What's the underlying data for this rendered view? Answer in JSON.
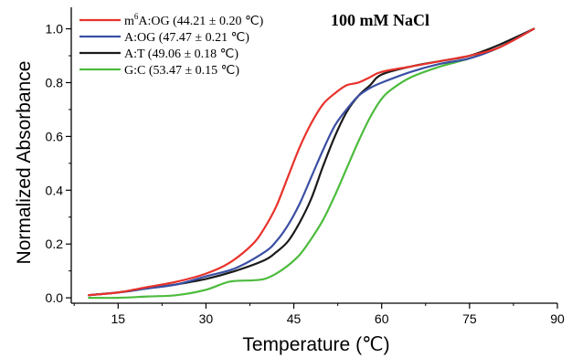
{
  "chart_data": {
    "type": "line",
    "xlabel": "Temperature (℃)",
    "ylabel": "Normalized Absorbance",
    "xlim": [
      7,
      90
    ],
    "ylim": [
      -0.02,
      1.08
    ],
    "x_ticks": [
      15,
      30,
      45,
      60,
      75,
      90
    ],
    "x_tick_labels": [
      "15",
      "30",
      "45",
      "60",
      "75",
      "90"
    ],
    "y_ticks": [
      0.0,
      0.2,
      0.4,
      0.6,
      0.8,
      1.0
    ],
    "y_tick_labels": [
      "0.0",
      "0.2",
      "0.4",
      "0.6",
      "0.8",
      "1.0"
    ],
    "annotation": "100 mM NaCl",
    "legend_position": "top-left",
    "grid": false,
    "series": [
      {
        "name_prefix": "m",
        "name_superscript": "6",
        "name_rest": "A:OG (44.21 ± 0.20 ℃)",
        "color": "#e8322b",
        "x": [
          10,
          15,
          20,
          25,
          30,
          34,
          38,
          40,
          42,
          44,
          46,
          48,
          50,
          52,
          54,
          56,
          58,
          60,
          65,
          70,
          75,
          80,
          86
        ],
        "y": [
          0.01,
          0.02,
          0.04,
          0.06,
          0.09,
          0.13,
          0.2,
          0.26,
          0.34,
          0.45,
          0.56,
          0.65,
          0.72,
          0.76,
          0.79,
          0.8,
          0.82,
          0.84,
          0.86,
          0.88,
          0.9,
          0.93,
          1.0
        ]
      },
      {
        "name": "A:OG (47.47 ± 0.21 ℃)",
        "color": "#3b4fa3",
        "x": [
          10,
          15,
          20,
          25,
          30,
          35,
          40,
          42,
          44,
          46,
          48,
          50,
          52,
          54,
          56,
          58,
          60,
          65,
          70,
          75,
          80,
          86
        ],
        "y": [
          0.01,
          0.02,
          0.035,
          0.05,
          0.08,
          0.11,
          0.17,
          0.21,
          0.27,
          0.35,
          0.45,
          0.55,
          0.64,
          0.7,
          0.75,
          0.78,
          0.8,
          0.84,
          0.87,
          0.89,
          0.93,
          1.0
        ]
      },
      {
        "name": "A:T (49.06 ± 0.18 ℃)",
        "color": "#1a1a1a",
        "x": [
          10,
          15,
          20,
          25,
          30,
          35,
          40,
          42,
          44,
          46,
          48,
          50,
          52,
          54,
          56,
          58,
          60,
          65,
          70,
          75,
          80,
          86
        ],
        "y": [
          0.01,
          0.02,
          0.035,
          0.05,
          0.07,
          0.1,
          0.14,
          0.17,
          0.21,
          0.28,
          0.37,
          0.49,
          0.6,
          0.69,
          0.75,
          0.79,
          0.83,
          0.86,
          0.88,
          0.9,
          0.94,
          1.0
        ]
      },
      {
        "name": "G:C (53.47 ± 0.15 ℃)",
        "color": "#4dbb3d",
        "x": [
          10,
          15,
          20,
          25,
          30,
          34,
          38,
          40,
          42,
          44,
          46,
          48,
          50,
          52,
          54,
          56,
          58,
          60,
          62,
          65,
          70,
          75,
          80,
          86
        ],
        "y": [
          0.0,
          0.0,
          0.005,
          0.01,
          0.03,
          0.06,
          0.065,
          0.07,
          0.09,
          0.12,
          0.16,
          0.22,
          0.29,
          0.38,
          0.48,
          0.58,
          0.67,
          0.74,
          0.78,
          0.82,
          0.86,
          0.89,
          0.93,
          1.0
        ]
      }
    ]
  }
}
